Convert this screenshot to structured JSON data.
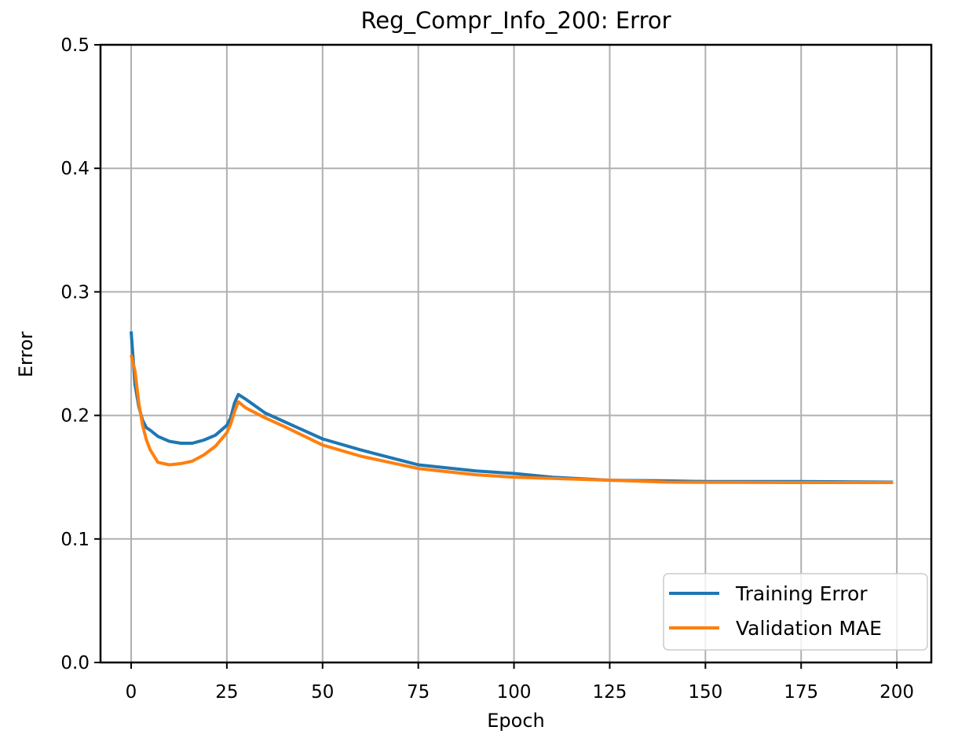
{
  "chart_data": {
    "type": "line",
    "title": "Reg_Compr_Info_200: Error",
    "xlabel": "Epoch",
    "ylabel": "Error",
    "xlim": [
      -8,
      209
    ],
    "ylim": [
      0.0,
      0.5
    ],
    "xticks": [
      0,
      25,
      50,
      75,
      100,
      125,
      150,
      175,
      200
    ],
    "yticks": [
      0.0,
      0.1,
      0.2,
      0.3,
      0.4,
      0.5
    ],
    "ytick_labels": [
      "0.0",
      "0.1",
      "0.2",
      "0.3",
      "0.4",
      "0.5"
    ],
    "grid": true,
    "legend_position": "lower right",
    "x": [
      0,
      1,
      2,
      3,
      4,
      5,
      7,
      10,
      13,
      16,
      19,
      22,
      25,
      26,
      27,
      28,
      30,
      35,
      40,
      50,
      60,
      75,
      90,
      100,
      110,
      125,
      140,
      150,
      175,
      199
    ],
    "series": [
      {
        "name": "Training Error",
        "color": "#1f77b4",
        "values": [
          0.268,
          0.225,
          0.207,
          0.196,
          0.19,
          0.188,
          0.183,
          0.179,
          0.1775,
          0.1775,
          0.18,
          0.184,
          0.192,
          0.198,
          0.21,
          0.217,
          0.213,
          0.202,
          0.195,
          0.181,
          0.172,
          0.16,
          0.155,
          0.153,
          0.15,
          0.1475,
          0.147,
          0.1465,
          0.1465,
          0.146
        ]
      },
      {
        "name": "Validation MAE",
        "color": "#ff7f0e",
        "values": [
          0.249,
          0.236,
          0.21,
          0.192,
          0.18,
          0.172,
          0.162,
          0.16,
          0.161,
          0.163,
          0.168,
          0.175,
          0.186,
          0.193,
          0.203,
          0.211,
          0.206,
          0.198,
          0.191,
          0.176,
          0.167,
          0.157,
          0.152,
          0.15,
          0.149,
          0.1476,
          0.146,
          0.1458,
          0.1457,
          0.1457
        ]
      }
    ]
  },
  "legend": {
    "items": [
      {
        "label": "Training Error",
        "color": "#1f77b4"
      },
      {
        "label": "Validation MAE",
        "color": "#ff7f0e"
      }
    ]
  }
}
